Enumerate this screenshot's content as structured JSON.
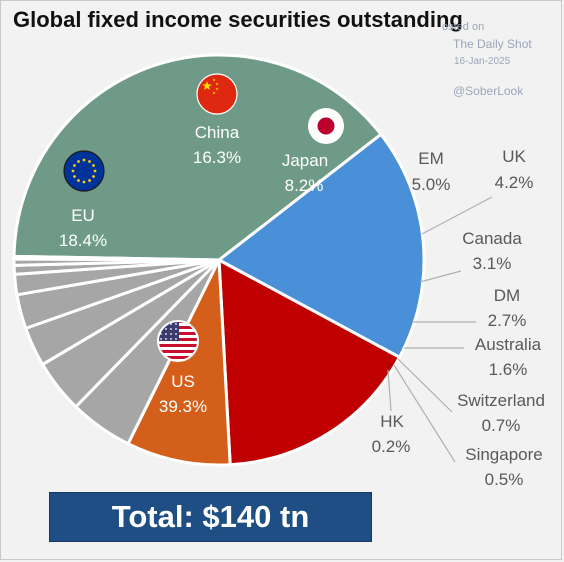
{
  "title": "Global fixed income securities outstanding",
  "source": {
    "posted": "osted on",
    "name": "The Daily Shot",
    "date": "16-Jan-2025",
    "handle": "@SoberLook"
  },
  "total": "Total: $140 tn",
  "colors": {
    "US": "#6f9a87",
    "EU": "#4a90d9",
    "China": "#c00000",
    "Japan": "#d35f1a",
    "other": "#a6a6a6",
    "leader": "#b0b0b0",
    "total_bg": "#1f4e84"
  },
  "chart_data": {
    "type": "pie",
    "title": "Global fixed income securities outstanding",
    "unit": "%",
    "slices": [
      {
        "name": "US",
        "label": "US",
        "value": 39.3,
        "value_label": "39.3%",
        "color": "#6f9a87",
        "icon": "us-flag-icon",
        "label_style": "inside"
      },
      {
        "name": "EU",
        "label": "EU",
        "value": 18.4,
        "value_label": "18.4%",
        "color": "#4a90d9",
        "icon": "eu-flag-icon",
        "label_style": "inside"
      },
      {
        "name": "China",
        "label": "China",
        "value": 16.3,
        "value_label": "16.3%",
        "color": "#c00000",
        "icon": "china-flag-icon",
        "label_style": "inside"
      },
      {
        "name": "Japan",
        "label": "Japan",
        "value": 8.2,
        "value_label": "8.2%",
        "color": "#d35f1a",
        "icon": "japan-flag-icon",
        "label_style": "inside"
      },
      {
        "name": "EM",
        "label": "EM",
        "value": 5.0,
        "value_label": "5.0%",
        "color": "#a6a6a6",
        "label_style": "outside"
      },
      {
        "name": "UK",
        "label": "UK",
        "value": 4.2,
        "value_label": "4.2%",
        "color": "#a6a6a6",
        "label_style": "outside"
      },
      {
        "name": "Canada",
        "label": "Canada",
        "value": 3.1,
        "value_label": "3.1%",
        "color": "#a6a6a6",
        "label_style": "outside"
      },
      {
        "name": "DM",
        "label": "DM",
        "value": 2.7,
        "value_label": "2.7%",
        "color": "#a6a6a6",
        "label_style": "outside"
      },
      {
        "name": "Australia",
        "label": "Australia",
        "value": 1.6,
        "value_label": "1.6%",
        "color": "#a6a6a6",
        "label_style": "outside"
      },
      {
        "name": "Switzerland",
        "label": "Switzerland",
        "value": 0.7,
        "value_label": "0.7%",
        "color": "#a6a6a6",
        "label_style": "outside"
      },
      {
        "name": "Singapore",
        "label": "Singapore",
        "value": 0.5,
        "value_label": "0.5%",
        "color": "#a6a6a6",
        "label_style": "outside"
      },
      {
        "name": "HK",
        "label": "HK",
        "value": 0.2,
        "value_label": "0.2%",
        "color": "#a6a6a6",
        "label_style": "outside"
      }
    ],
    "total_label": "Total: $140 tn"
  }
}
